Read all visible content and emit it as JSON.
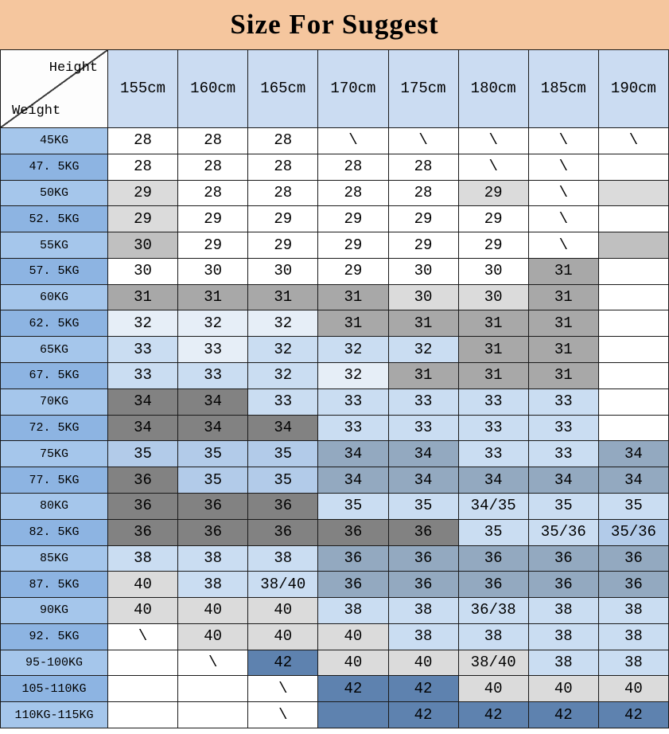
{
  "title": "Size For Suggest",
  "colors": {
    "title_bg": "#F5C69E",
    "header_bg": "#CBDCF2",
    "corner_bg": "#FDFDFD",
    "border": "#1A1A1A",
    "weight_col_alt": [
      "#A5C6EB",
      "#8DB4E2"
    ],
    "palette": {
      "W": "#FFFFFF",
      "G1": "#DBDBDB",
      "G2": "#C0C0C0",
      "G3": "#A8A8A8",
      "G4": "#828282",
      "B1": "#E6EEF7",
      "B2": "#CADDF2",
      "B3": "#B2CBE9",
      "B4": "#93A9C0",
      "B5": "#5E82AF"
    }
  },
  "chart_data": {
    "type": "table",
    "title": "Size For Suggest",
    "corner": {
      "top_right": "Height",
      "bottom_left": "Weight"
    },
    "columns": [
      "155cm",
      "160cm",
      "165cm",
      "170cm",
      "175cm",
      "180cm",
      "185cm",
      "190cm"
    ],
    "rows": [
      {
        "weight": "45KG",
        "values": [
          "28",
          "28",
          "28",
          "\\",
          "\\",
          "\\",
          "\\",
          "\\"
        ],
        "colors": [
          "W",
          "W",
          "W",
          "W",
          "W",
          "W",
          "W",
          "W"
        ]
      },
      {
        "weight": "47. 5KG",
        "values": [
          "28",
          "28",
          "28",
          "28",
          "28",
          "\\",
          "\\",
          ""
        ],
        "colors": [
          "W",
          "W",
          "W",
          "W",
          "W",
          "W",
          "W",
          "W"
        ]
      },
      {
        "weight": "50KG",
        "values": [
          "29",
          "28",
          "28",
          "28",
          "28",
          "29",
          "\\",
          ""
        ],
        "colors": [
          "G1",
          "W",
          "W",
          "W",
          "W",
          "G1",
          "W",
          "G1"
        ]
      },
      {
        "weight": "52. 5KG",
        "values": [
          "29",
          "29",
          "29",
          "29",
          "29",
          "29",
          "\\",
          ""
        ],
        "colors": [
          "G1",
          "W",
          "W",
          "W",
          "W",
          "W",
          "W",
          "W"
        ]
      },
      {
        "weight": "55KG",
        "values": [
          "30",
          "29",
          "29",
          "29",
          "29",
          "29",
          "\\",
          ""
        ],
        "colors": [
          "G2",
          "W",
          "W",
          "W",
          "W",
          "W",
          "W",
          "G2"
        ]
      },
      {
        "weight": "57. 5KG",
        "values": [
          "30",
          "30",
          "30",
          "29",
          "30",
          "30",
          "31",
          ""
        ],
        "colors": [
          "W",
          "W",
          "W",
          "W",
          "W",
          "W",
          "G3",
          "W"
        ]
      },
      {
        "weight": "60KG",
        "values": [
          "31",
          "31",
          "31",
          "31",
          "30",
          "30",
          "31",
          ""
        ],
        "colors": [
          "G3",
          "G3",
          "G3",
          "G3",
          "G1",
          "G1",
          "G3",
          "W"
        ]
      },
      {
        "weight": "62. 5KG",
        "values": [
          "32",
          "32",
          "32",
          "31",
          "31",
          "31",
          "31",
          ""
        ],
        "colors": [
          "B1",
          "B1",
          "B1",
          "G3",
          "G3",
          "G3",
          "G3",
          "W"
        ]
      },
      {
        "weight": "65KG",
        "values": [
          "33",
          "33",
          "32",
          "32",
          "32",
          "31",
          "31",
          ""
        ],
        "colors": [
          "B2",
          "B1",
          "B2",
          "B2",
          "B2",
          "G3",
          "G3",
          "W"
        ]
      },
      {
        "weight": "67. 5KG",
        "values": [
          "33",
          "33",
          "32",
          "32",
          "31",
          "31",
          "31",
          ""
        ],
        "colors": [
          "B2",
          "B2",
          "B2",
          "B1",
          "G3",
          "G3",
          "G3",
          "W"
        ]
      },
      {
        "weight": "70KG",
        "values": [
          "34",
          "34",
          "33",
          "33",
          "33",
          "33",
          "33",
          ""
        ],
        "colors": [
          "G4",
          "G4",
          "B2",
          "B2",
          "B2",
          "B2",
          "B2",
          "W"
        ]
      },
      {
        "weight": "72. 5KG",
        "values": [
          "34",
          "34",
          "34",
          "33",
          "33",
          "33",
          "33",
          ""
        ],
        "colors": [
          "G4",
          "G4",
          "G4",
          "B2",
          "B2",
          "B2",
          "B2",
          "W"
        ]
      },
      {
        "weight": "75KG",
        "values": [
          "35",
          "35",
          "35",
          "34",
          "34",
          "33",
          "33",
          "34"
        ],
        "colors": [
          "B3",
          "B3",
          "B3",
          "B4",
          "B4",
          "B2",
          "B2",
          "B4"
        ]
      },
      {
        "weight": "77. 5KG",
        "values": [
          "36",
          "35",
          "35",
          "34",
          "34",
          "34",
          "34",
          "34"
        ],
        "colors": [
          "G4",
          "B3",
          "B3",
          "B4",
          "B4",
          "B4",
          "B4",
          "B4"
        ]
      },
      {
        "weight": "80KG",
        "values": [
          "36",
          "36",
          "36",
          "35",
          "35",
          "34/35",
          "35",
          "35"
        ],
        "colors": [
          "G4",
          "G4",
          "G4",
          "B2",
          "B2",
          "B2",
          "B2",
          "B2"
        ]
      },
      {
        "weight": "82. 5KG",
        "values": [
          "36",
          "36",
          "36",
          "36",
          "36",
          "35",
          "35/36",
          "35/36"
        ],
        "colors": [
          "G4",
          "G4",
          "G4",
          "G4",
          "G4",
          "B2",
          "B2",
          "B3"
        ]
      },
      {
        "weight": "85KG",
        "values": [
          "38",
          "38",
          "38",
          "36",
          "36",
          "36",
          "36",
          "36"
        ],
        "colors": [
          "B2",
          "B2",
          "B2",
          "B4",
          "B4",
          "B4",
          "B4",
          "B4"
        ]
      },
      {
        "weight": "87. 5KG",
        "values": [
          "40",
          "38",
          "38/40",
          "36",
          "36",
          "36",
          "36",
          "36"
        ],
        "colors": [
          "G1",
          "B2",
          "B2",
          "B4",
          "B4",
          "B4",
          "B4",
          "B4"
        ]
      },
      {
        "weight": "90KG",
        "values": [
          "40",
          "40",
          "40",
          "38",
          "38",
          "36/38",
          "38",
          "38"
        ],
        "colors": [
          "G1",
          "G1",
          "G1",
          "B2",
          "B2",
          "B2",
          "B2",
          "B2"
        ]
      },
      {
        "weight": "92. 5KG",
        "values": [
          "\\",
          "40",
          "40",
          "40",
          "38",
          "38",
          "38",
          "38"
        ],
        "colors": [
          "W",
          "G1",
          "G1",
          "G1",
          "B2",
          "B2",
          "B2",
          "B2"
        ]
      },
      {
        "weight": "95-100KG",
        "values": [
          "",
          "\\",
          "42",
          "40",
          "40",
          "38/40",
          "38",
          "38"
        ],
        "colors": [
          "W",
          "W",
          "B5",
          "G1",
          "G1",
          "G1",
          "B2",
          "B2"
        ]
      },
      {
        "weight": "105-110KG",
        "values": [
          "",
          "",
          "\\",
          "42",
          "42",
          "40",
          "40",
          "40"
        ],
        "colors": [
          "W",
          "W",
          "W",
          "B5",
          "B5",
          "G1",
          "G1",
          "G1"
        ]
      },
      {
        "weight": "110KG-115KG",
        "values": [
          "",
          "",
          "\\",
          "",
          "42",
          "42",
          "42",
          "42"
        ],
        "colors": [
          "W",
          "W",
          "W",
          "B5",
          "B5",
          "B5",
          "B5",
          "B5"
        ]
      }
    ]
  }
}
